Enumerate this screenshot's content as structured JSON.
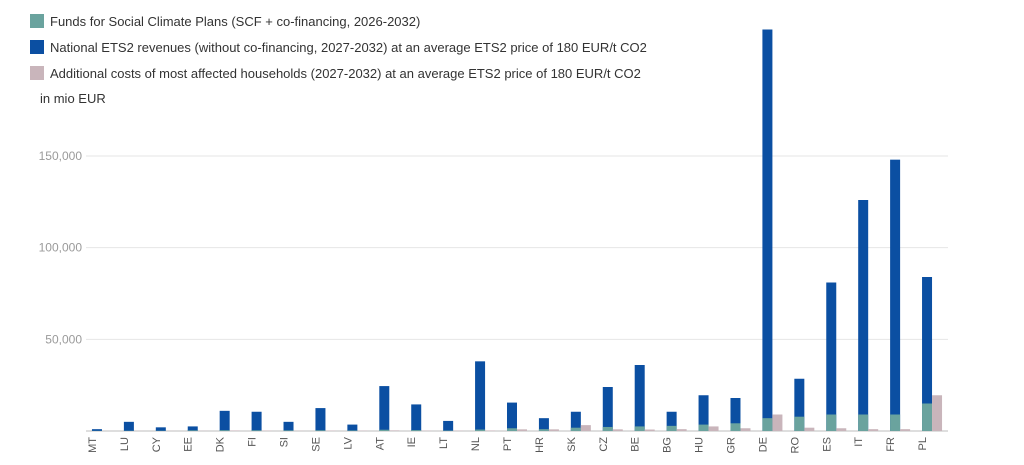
{
  "chart_data": {
    "type": "bar",
    "stacked_series": "Funds for Social Climate Plans (SCF + co-financing, 2026-2032) is the lower segment of National ETS2 revenues bar; Additional costs is a separate adjacent bar",
    "unit_label": "in mio EUR",
    "categories": [
      "MT",
      "LU",
      "CY",
      "EE",
      "DK",
      "FI",
      "SI",
      "SE",
      "LV",
      "AT",
      "IE",
      "LT",
      "NL",
      "PT",
      "HR",
      "SK",
      "CZ",
      "BE",
      "BG",
      "HU",
      "GR",
      "DE",
      "RO",
      "ES",
      "IT",
      "FR",
      "PL"
    ],
    "series": [
      {
        "name": "Funds for Social Climate Plans (SCF + co-financing, 2026-2032)",
        "color": "#6aa39e",
        "values": [
          100,
          150,
          150,
          350,
          450,
          400,
          350,
          400,
          300,
          700,
          500,
          250,
          800,
          1500,
          1000,
          1800,
          2200,
          2500,
          2800,
          3500,
          4200,
          7000,
          7800,
          9000,
          9000,
          9000,
          15000
        ]
      },
      {
        "name": "National ETS2 revenues (without co-financing, 2027-2032) at an average ETS2 price of 180 EUR/t CO2",
        "color": "#0b4fa2",
        "values": [
          1000,
          5000,
          2000,
          2500,
          11000,
          10500,
          5000,
          12500,
          3500,
          24500,
          14500,
          5500,
          38000,
          15500,
          7000,
          10500,
          24000,
          36000,
          10500,
          19500,
          18000,
          219000,
          28500,
          81000,
          126000,
          148000,
          84000
        ]
      },
      {
        "name": "Additional costs of most affected households (2027-2032) at an average ETS2 price of 180 EUR/t CO2",
        "color": "#c9b5bb",
        "values": [
          50,
          80,
          80,
          120,
          300,
          250,
          150,
          250,
          200,
          350,
          200,
          200,
          300,
          900,
          900,
          3200,
          900,
          800,
          1000,
          2500,
          1500,
          9000,
          1800,
          1500,
          1000,
          1000,
          19500
        ]
      }
    ],
    "y_ticks": [
      50000,
      100000,
      150000
    ],
    "y_tick_labels": [
      "50,000",
      "100,000",
      "150,000"
    ],
    "ylim": [
      0,
      222000
    ],
    "grid": true,
    "legend_position": "top-left"
  }
}
